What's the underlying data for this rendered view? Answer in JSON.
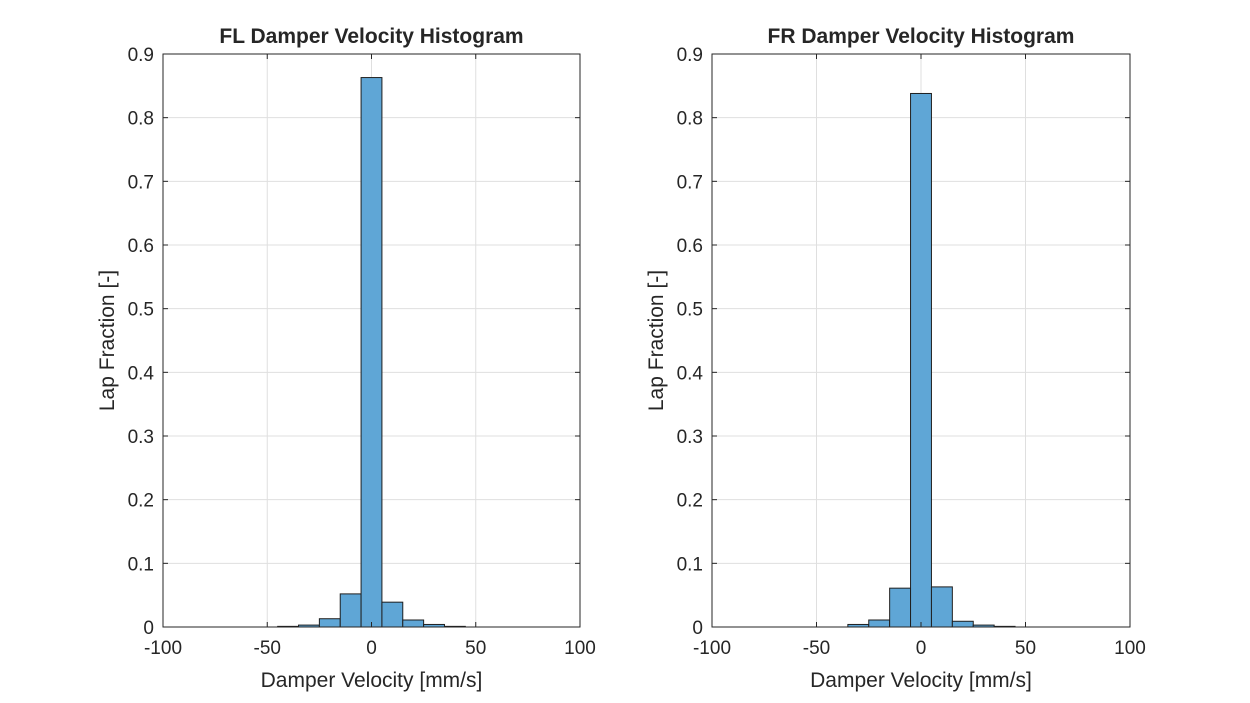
{
  "chart_data": [
    {
      "type": "bar",
      "title": "FL Damper Velocity Histogram",
      "xlabel": "Damper Velocity [mm/s]",
      "ylabel": "Lap Fraction [-]",
      "xlim": [
        -100,
        100
      ],
      "ylim": [
        0,
        0.9
      ],
      "xticks": [
        -100,
        -50,
        0,
        50,
        100
      ],
      "yticks": [
        0,
        0.1,
        0.2,
        0.3,
        0.4,
        0.5,
        0.6,
        0.7,
        0.8,
        0.9
      ],
      "xtick_labels": [
        "-100",
        "-50",
        "0",
        "50",
        "100"
      ],
      "ytick_labels": [
        "0",
        "0.1",
        "0.2",
        "0.3",
        "0.4",
        "0.5",
        "0.6",
        "0.7",
        "0.8",
        "0.9"
      ],
      "grid": true,
      "bin_width": 10,
      "bin_edges": [
        -45,
        -35,
        -25,
        -15,
        -5,
        5,
        15,
        25,
        35,
        45
      ],
      "values": [
        0.001,
        0.003,
        0.013,
        0.052,
        0.863,
        0.039,
        0.011,
        0.004,
        0.001
      ],
      "bar_color": "#5fa6d6",
      "edge_color": "#1f1f1f"
    },
    {
      "type": "bar",
      "title": "FR Damper Velocity Histogram",
      "xlabel": "Damper Velocity [mm/s]",
      "ylabel": "Lap Fraction [-]",
      "xlim": [
        -100,
        100
      ],
      "ylim": [
        0,
        0.9
      ],
      "xticks": [
        -100,
        -50,
        0,
        50,
        100
      ],
      "yticks": [
        0,
        0.1,
        0.2,
        0.3,
        0.4,
        0.5,
        0.6,
        0.7,
        0.8,
        0.9
      ],
      "xtick_labels": [
        "-100",
        "-50",
        "0",
        "50",
        "100"
      ],
      "ytick_labels": [
        "0",
        "0.1",
        "0.2",
        "0.3",
        "0.4",
        "0.5",
        "0.6",
        "0.7",
        "0.8",
        "0.9"
      ],
      "grid": true,
      "bin_width": 10,
      "bin_edges": [
        -35,
        -25,
        -15,
        -5,
        5,
        15,
        25,
        35,
        45
      ],
      "values": [
        0.004,
        0.011,
        0.061,
        0.838,
        0.063,
        0.009,
        0.003,
        0.001
      ],
      "bar_color": "#5fa6d6",
      "edge_color": "#1f1f1f"
    }
  ]
}
